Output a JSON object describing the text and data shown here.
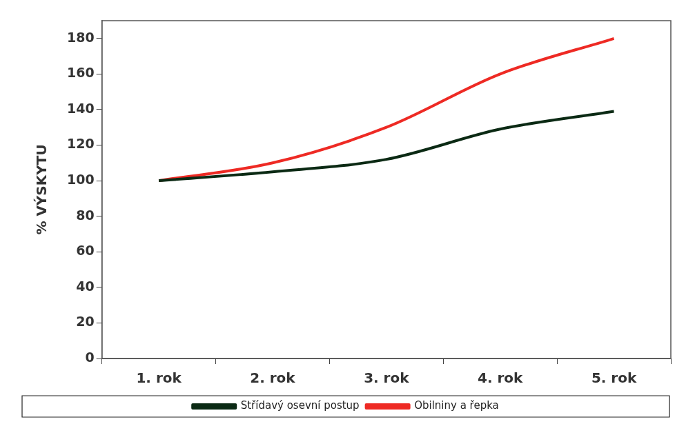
{
  "chart_data": {
    "type": "line",
    "ylabel": "% VÝSKYTU",
    "categories": [
      "1. rok",
      "2. rok",
      "3. rok",
      "4. rok",
      "5. rok"
    ],
    "series": [
      {
        "name": "Střídavý osevní postup",
        "color": "#0b2a14",
        "values": [
          100,
          105,
          112,
          129,
          139
        ]
      },
      {
        "name": "Obilniny a řepka",
        "color": "#ee2a24",
        "values": [
          100,
          110,
          130,
          160,
          180
        ]
      }
    ],
    "ylim": [
      0,
      190
    ],
    "yticks": [
      0,
      20,
      40,
      60,
      80,
      100,
      120,
      140,
      160,
      180
    ],
    "grid": false,
    "legend": "bottom",
    "marker": "none",
    "line_style": "solid"
  }
}
